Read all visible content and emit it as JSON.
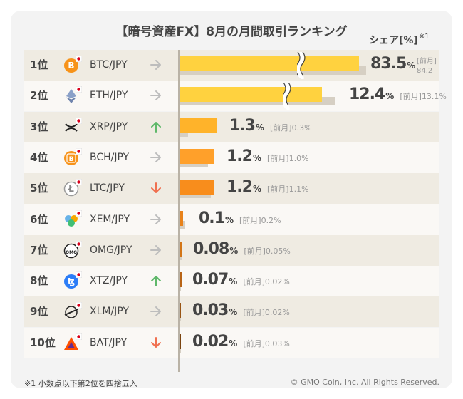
{
  "title": "【暗号資産FX】8月の月間取引ランキング",
  "unit_label": "シェア[%]",
  "unit_note": "※1",
  "prev_label": "[前月]",
  "footnote": "※1 小数点以下第2位を四捨五入",
  "copyright": "© GMO Coin, Inc. All Rights Reserved.",
  "colors": {
    "current": "#ffd23f",
    "prev": "#d6cfc3",
    "up": "#5fb86a",
    "down": "#f07050",
    "flat": "#bdbdbd"
  },
  "chart_data": {
    "type": "bar",
    "orientation": "horizontal",
    "title": "【暗号資産FX】8月の月間取引ランキング",
    "xlabel": "シェア[%]",
    "axis_break": true,
    "categories": [
      "BTC/JPY",
      "ETH/JPY",
      "XRP/JPY",
      "BCH/JPY",
      "LTC/JPY",
      "XEM/JPY",
      "OMG/JPY",
      "XTZ/JPY",
      "XLM/JPY",
      "BAT/JPY"
    ],
    "series": [
      {
        "name": "8月",
        "values": [
          83.5,
          12.4,
          1.3,
          1.2,
          1.2,
          0.1,
          0.08,
          0.07,
          0.03,
          0.02
        ]
      },
      {
        "name": "前月",
        "values": [
          84.2,
          13.1,
          0.3,
          1.0,
          1.1,
          0.2,
          0.05,
          0.02,
          0.02,
          0.03
        ]
      }
    ],
    "rows": [
      {
        "rank": "1位",
        "pair": "BTC/JPY",
        "icon": "btc",
        "trend": "flat",
        "value": "83.5",
        "prev": "84.2"
      },
      {
        "rank": "2位",
        "pair": "ETH/JPY",
        "icon": "eth",
        "trend": "flat",
        "value": "12.4",
        "prev": "13.1"
      },
      {
        "rank": "3位",
        "pair": "XRP/JPY",
        "icon": "xrp",
        "trend": "up",
        "value": "1.3",
        "prev": "0.3"
      },
      {
        "rank": "4位",
        "pair": "BCH/JPY",
        "icon": "bch",
        "trend": "flat",
        "value": "1.2",
        "prev": "1.0"
      },
      {
        "rank": "5位",
        "pair": "LTC/JPY",
        "icon": "ltc",
        "trend": "down",
        "value": "1.2",
        "prev": "1.1"
      },
      {
        "rank": "6位",
        "pair": "XEM/JPY",
        "icon": "xem",
        "trend": "flat",
        "value": "0.1",
        "prev": "0.2"
      },
      {
        "rank": "7位",
        "pair": "OMG/JPY",
        "icon": "omg",
        "trend": "flat",
        "value": "0.08",
        "prev": "0.05"
      },
      {
        "rank": "8位",
        "pair": "XTZ/JPY",
        "icon": "xtz",
        "trend": "up",
        "value": "0.07",
        "prev": "0.02"
      },
      {
        "rank": "9位",
        "pair": "XLM/JPY",
        "icon": "xlm",
        "trend": "flat",
        "value": "0.03",
        "prev": "0.02"
      },
      {
        "rank": "10位",
        "pair": "BAT/JPY",
        "icon": "bat",
        "trend": "down",
        "value": "0.02",
        "prev": "0.03"
      }
    ],
    "bar_colors": [
      "#ffd23f",
      "#ffd23f",
      "#ffb32a",
      "#ffa02a",
      "#f88d1c",
      "#e8821a",
      "#d37516",
      "#b86416",
      "#985414",
      "#7a4410"
    ],
    "omg_label": "OMG"
  }
}
